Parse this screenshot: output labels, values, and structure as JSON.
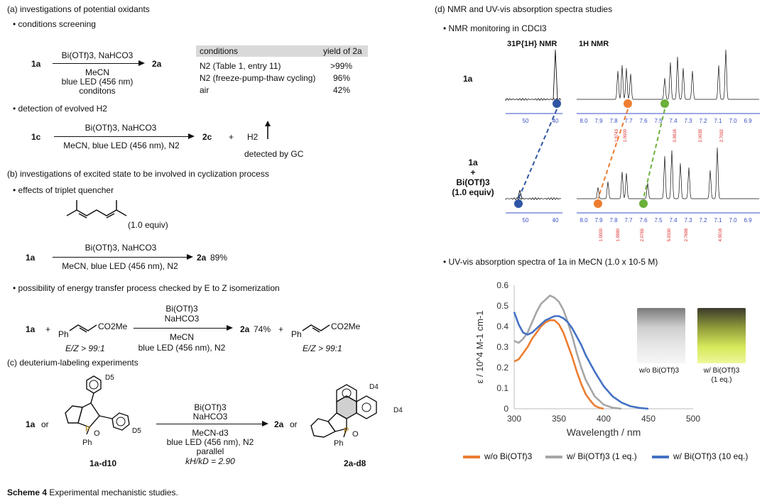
{
  "panel_a": {
    "title": "(a) investigations of potential oxidants",
    "screening_label": "• conditions screening",
    "rxn1": {
      "reactant": "1a",
      "product": "2a",
      "above": "Bi(OTf)3, NaHCO3",
      "below": [
        "MeCN",
        "blue LED (456 nm)",
        "conditons"
      ]
    },
    "table": {
      "headers": [
        "conditions",
        "yield of 2a"
      ],
      "rows": [
        {
          "condition": "N2 (Table 1, entry 11)",
          "yield": ">99%"
        },
        {
          "condition": "N2 (freeze-pump-thaw cycling)",
          "yield": "96%"
        },
        {
          "condition": "air",
          "yield": "42%"
        }
      ]
    },
    "h2_label": "• detection of evolved H2",
    "rxn2": {
      "reactant": "1c",
      "product": "2c",
      "plus": "+",
      "gas": "H2",
      "above": "Bi(OTf)3, NaHCO3",
      "below": "MeCN, blue LED (456 nm), N2",
      "detected": "detected by GC"
    }
  },
  "panel_b": {
    "title": "(b) investigations of excited state to be involved in cyclization process",
    "quencher_label": "• effects of triplet quencher",
    "quencher_equiv": "(1.0 equiv)",
    "rxn3": {
      "reactant": "1a",
      "product": "2a",
      "yield": "89%",
      "above": "Bi(OTf)3, NaHCO3",
      "below": "MeCN, blue LED (456 nm), N2"
    },
    "isomerization_label": "• possibility of energy transfer process checked by E to Z isomerization",
    "rxn4": {
      "reactant": "1a",
      "plus": "+",
      "ester": "CO2Me",
      "ph": "Ph",
      "product": "2a",
      "yield": "74%",
      "ez_start": "E/Z > 99:1",
      "ez_end": "E/Z > 99:1",
      "above": [
        "Bi(OTf)3",
        "NaHCO3"
      ],
      "below": [
        "MeCN",
        "blue LED (456 nm), N2"
      ]
    }
  },
  "panel_c": {
    "title": "(c) deuterium-labeling experiments",
    "rxn5": {
      "reactant": "1a",
      "or1": "or",
      "reactant_label": "1a-d10",
      "product": "2a",
      "or2": "or",
      "product_label": "2a-d8",
      "above": [
        "Bi(OTf)3",
        "NaHCO3"
      ],
      "below": [
        "MeCN-d3",
        "blue LED (456 nm), N2",
        "parallel",
        "kH/kD = 2.90"
      ],
      "d5": "D5",
      "d4": "D4",
      "p": "P",
      "o": "O",
      "ph": "Ph"
    }
  },
  "caption": {
    "bold": "Scheme 4",
    "text": "Experimental mechanistic studies."
  },
  "panel_d": {
    "title": "(d) NMR and UV-vis absorption spectra studies",
    "nmr_label": "• NMR monitoring in CDCl3",
    "p_nmr_header": "31P{1H} NMR",
    "h_nmr_header": "1H NMR",
    "sample1": "1a",
    "sample2": [
      "1a",
      "+",
      "Bi(OTf)3",
      "(1.0 equiv)"
    ],
    "p_axis": [
      "50",
      "40"
    ],
    "h_axis": [
      "8.0",
      "7.9",
      "7.8",
      "7.7",
      "7.6",
      "7.5",
      "7.4",
      "7.3",
      "7.2",
      "7.1",
      "7.0",
      "6.9"
    ],
    "integrals_top": [
      "1.9743",
      "1.0000",
      "0.9816",
      "2.0035",
      "2.7092"
    ],
    "integrals_bottom": [
      "1.0000",
      "1.9980",
      "2.0765",
      "5.9330",
      "2.7698",
      "4.9018"
    ],
    "marker_colors": {
      "phosphorus": "#2f55a4",
      "proton_a": "#ee7d31",
      "proton_b": "#6bb13a"
    },
    "uv_label": "• UV-vis absorption spectra of 1a in MeCN (1.0 x 10-5 M)",
    "photo1_caption": "w/o Bi(OTf)3",
    "photo2_caption": [
      "w/ Bi(OTf)3",
      "(1 eq.)"
    ],
    "legend": [
      {
        "label": "w/o Bi(OTf)3",
        "color": "#ee7d31"
      },
      {
        "label": "w/ Bi(OTf)3 (1 eq.)",
        "color": "#a6a6a6"
      },
      {
        "label": "w/ Bi(OTf)3 (10 eq.)",
        "color": "#4472c4"
      }
    ]
  },
  "chart_data": {
    "type": "line",
    "title": "",
    "xlabel": "Wavelength / nm",
    "ylabel": "ε / 10^4 M-1 cm-1",
    "xlim": [
      300,
      500
    ],
    "ylim": [
      0,
      0.6
    ],
    "x_ticks": [
      300,
      350,
      400,
      450,
      500
    ],
    "y_ticks": [
      0,
      0.1,
      0.2,
      0.3,
      0.4,
      0.5,
      0.6
    ],
    "grid": false,
    "legend": "bottom",
    "series": [
      {
        "name": "w/o Bi(OTf)3",
        "color": "#ee7d31",
        "x": [
          300,
          305,
          310,
          315,
          320,
          325,
          330,
          335,
          340,
          345,
          350,
          355,
          360,
          365,
          370,
          375,
          380,
          385,
          390,
          395,
          400
        ],
        "y": [
          0.23,
          0.24,
          0.27,
          0.3,
          0.34,
          0.37,
          0.4,
          0.42,
          0.43,
          0.43,
          0.41,
          0.37,
          0.31,
          0.25,
          0.18,
          0.12,
          0.07,
          0.04,
          0.015,
          0.005,
          0.0
        ]
      },
      {
        "name": "w/ Bi(OTf)3 (1 eq.)",
        "color": "#a6a6a6",
        "x": [
          300,
          305,
          310,
          315,
          320,
          325,
          330,
          335,
          340,
          345,
          350,
          355,
          360,
          365,
          370,
          375,
          380,
          390,
          400,
          410,
          420
        ],
        "y": [
          0.33,
          0.32,
          0.34,
          0.37,
          0.42,
          0.47,
          0.51,
          0.53,
          0.55,
          0.54,
          0.52,
          0.48,
          0.42,
          0.35,
          0.27,
          0.2,
          0.14,
          0.06,
          0.02,
          0.005,
          0.0
        ]
      },
      {
        "name": "w/ Bi(OTf)3 (10 eq.)",
        "color": "#4472c4",
        "x": [
          300,
          305,
          310,
          315,
          320,
          325,
          330,
          335,
          340,
          345,
          350,
          355,
          360,
          365,
          370,
          375,
          380,
          390,
          400,
          410,
          420,
          430,
          440,
          450
        ],
        "y": [
          0.47,
          0.41,
          0.37,
          0.36,
          0.37,
          0.39,
          0.41,
          0.43,
          0.44,
          0.45,
          0.45,
          0.44,
          0.42,
          0.39,
          0.35,
          0.31,
          0.26,
          0.18,
          0.11,
          0.06,
          0.03,
          0.012,
          0.004,
          0.0
        ]
      }
    ]
  }
}
